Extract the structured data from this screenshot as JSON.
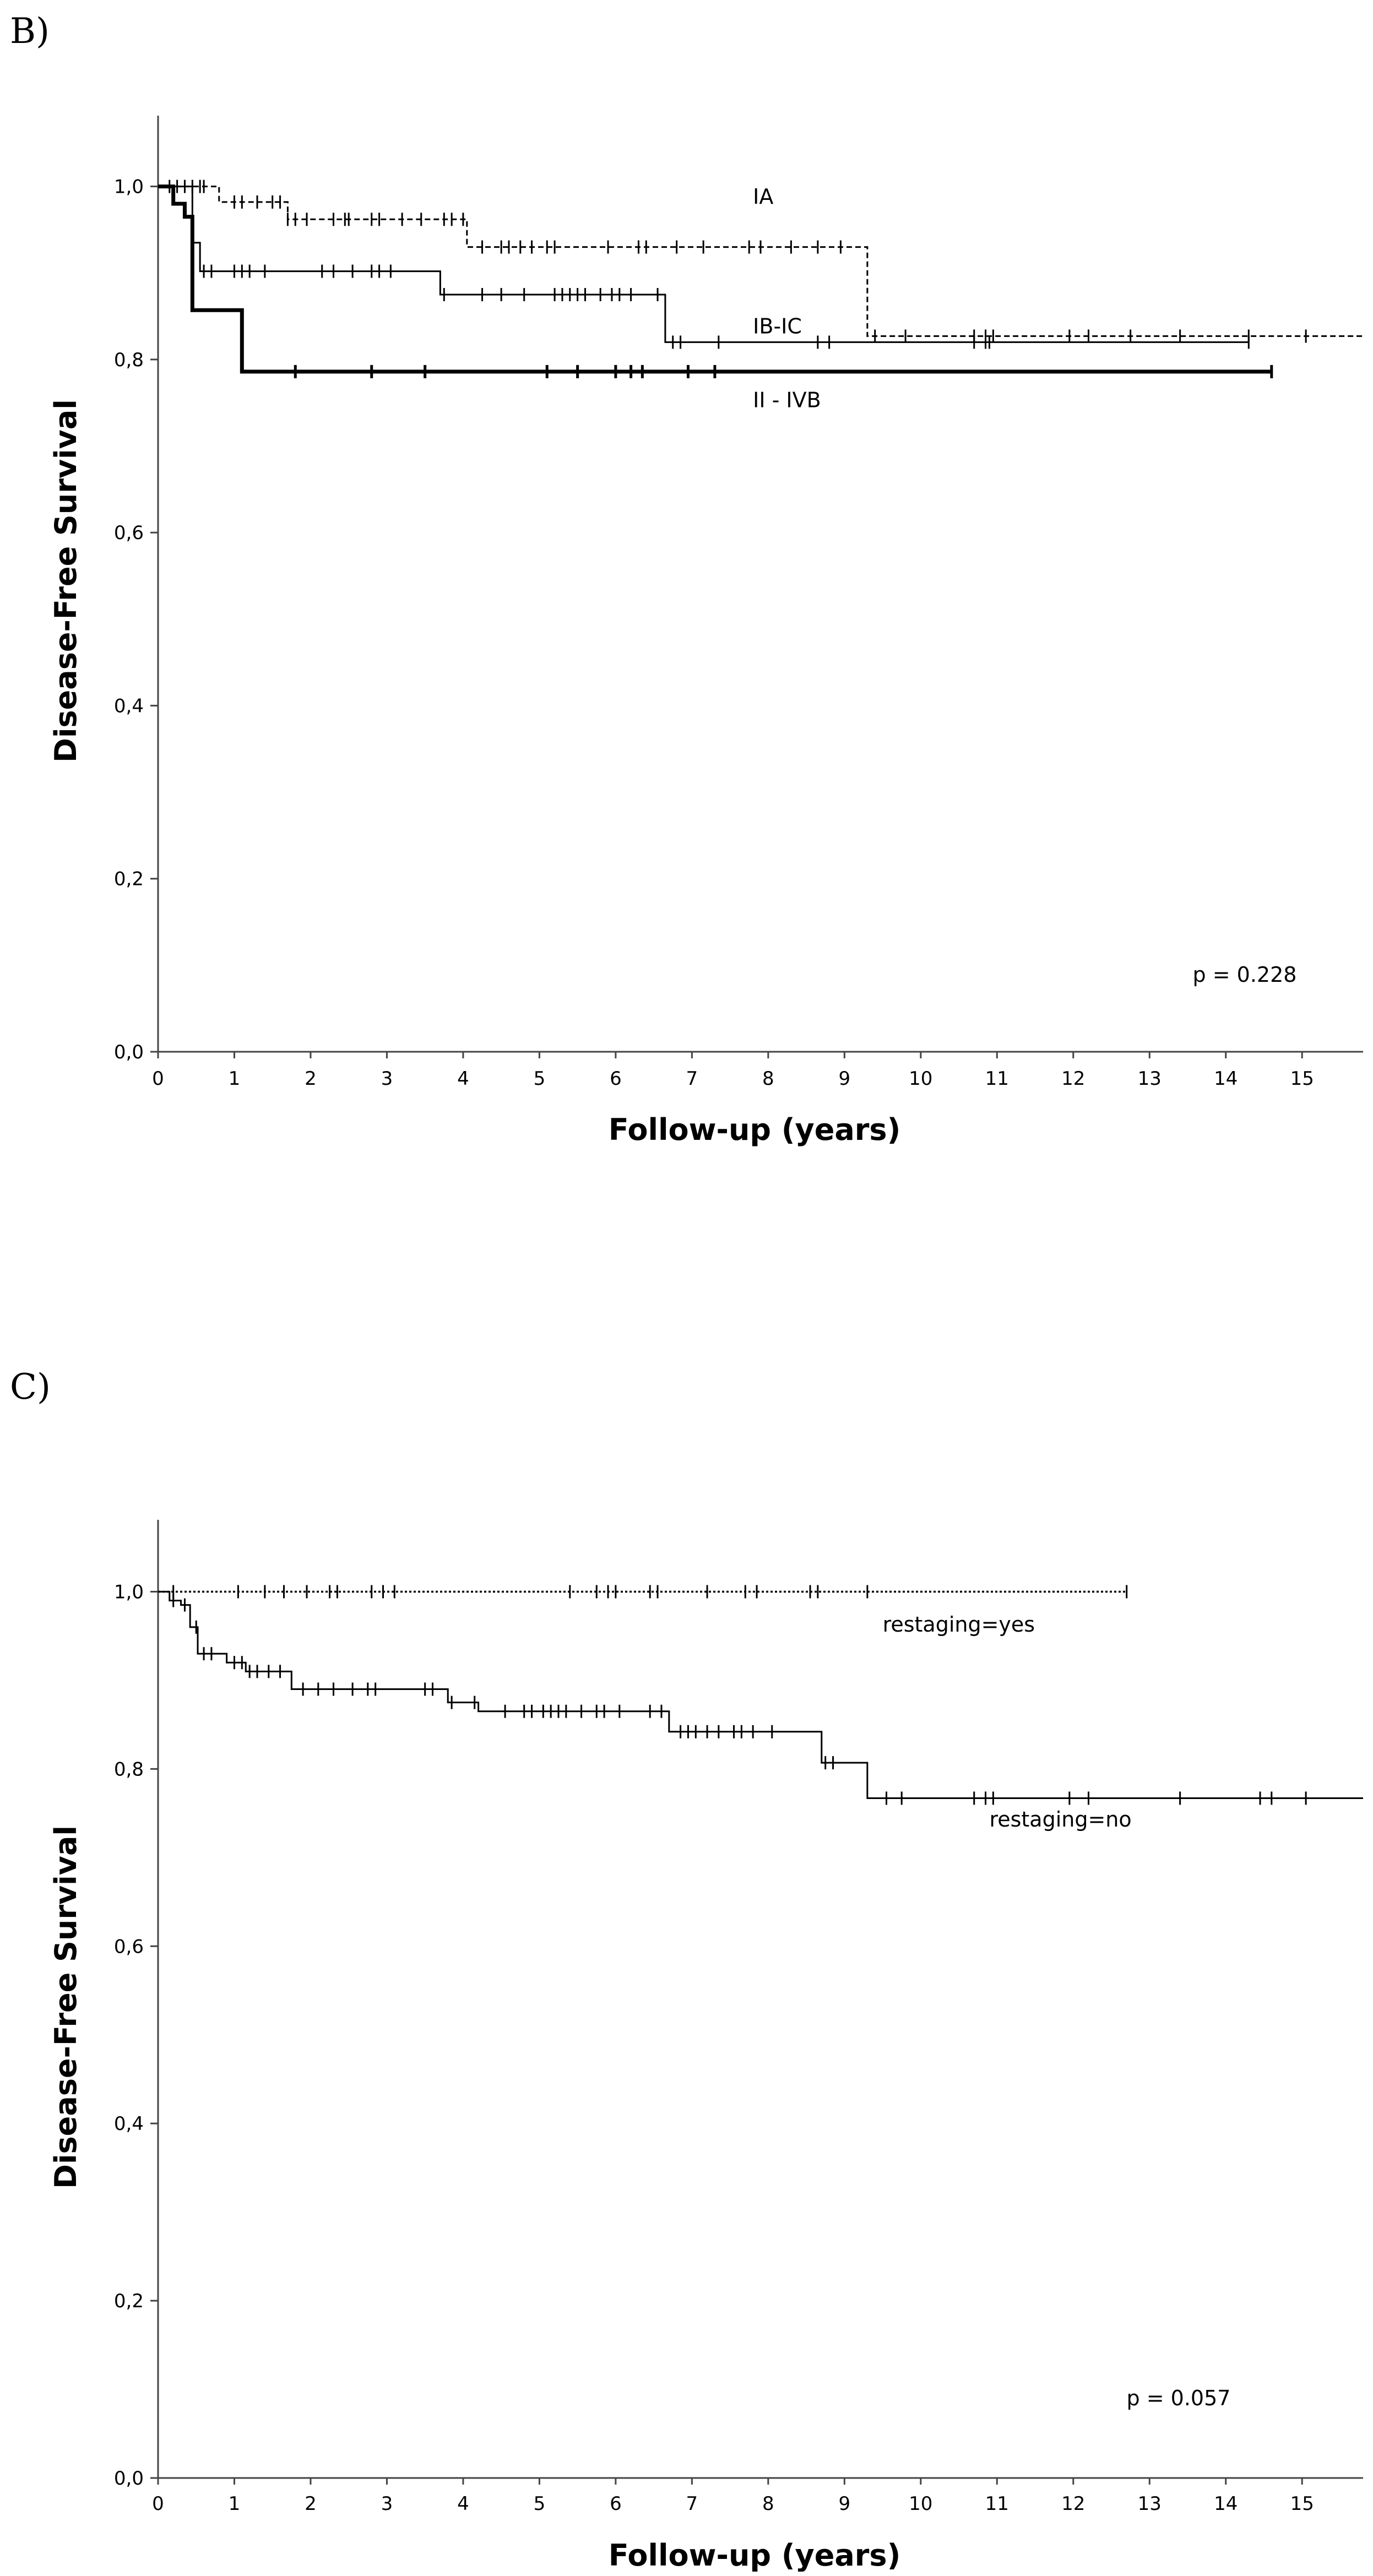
{
  "chart_data": [
    {
      "panel": "B)",
      "type": "line",
      "subtype": "kaplan-meier step",
      "title": "",
      "xlabel": "Follow-up (years)",
      "ylabel": "Disease-Free Survival",
      "xlim": [
        0,
        15.8
      ],
      "ylim": [
        0,
        1.05
      ],
      "xticks": [
        "0",
        "1",
        "2",
        "3",
        "4",
        "5",
        "6",
        "7",
        "8",
        "9",
        "10",
        "11",
        "12",
        "13",
        "14",
        "15"
      ],
      "yticks": [
        "0,0",
        "0,2",
        "0,4",
        "0,6",
        "0,8",
        "1,0"
      ],
      "annotation": "p = 0.228",
      "series": [
        {
          "name": "IA",
          "style": "dashed",
          "label_at": [
            7.8,
            0.98
          ],
          "steps": [
            [
              0,
              1.0
            ],
            [
              0.8,
              0.982
            ],
            [
              1.7,
              0.962
            ],
            [
              4.05,
              0.93
            ],
            [
              9.3,
              0.827
            ],
            [
              15.8,
              0.827
            ]
          ],
          "censors": [
            0.15,
            0.25,
            0.35,
            0.45,
            0.55,
            0.6,
            1.0,
            1.1,
            1.3,
            1.5,
            1.6,
            1.7,
            1.8,
            1.95,
            2.3,
            2.45,
            2.5,
            2.8,
            2.9,
            3.2,
            3.45,
            3.75,
            3.85,
            4.0,
            4.25,
            4.5,
            4.6,
            4.75,
            4.9,
            5.1,
            5.2,
            5.9,
            6.3,
            6.4,
            6.8,
            7.15,
            7.75,
            7.9,
            8.3,
            8.65,
            8.95,
            9.4,
            9.8,
            10.7,
            10.85,
            10.95,
            11.95,
            12.2,
            12.75,
            13.4,
            14.3,
            15.05
          ]
        },
        {
          "name": "IB-IC",
          "style": "solid",
          "label_at": [
            7.8,
            0.83
          ],
          "steps": [
            [
              0,
              1.0
            ],
            [
              0.45,
              0.935
            ],
            [
              0.55,
              0.902
            ],
            [
              3.7,
              0.875
            ],
            [
              6.65,
              0.82
            ],
            [
              14.3,
              0.82
            ]
          ],
          "censors": [
            0.6,
            0.7,
            1.0,
            1.1,
            1.2,
            1.4,
            2.15,
            2.3,
            2.55,
            2.8,
            2.9,
            3.05,
            3.75,
            4.25,
            4.5,
            4.8,
            5.2,
            5.3,
            5.4,
            5.5,
            5.6,
            5.8,
            5.95,
            6.05,
            6.2,
            6.55,
            6.75,
            6.85,
            7.35,
            8.65,
            8.8,
            10.7,
            10.85,
            10.9,
            14.3
          ]
        },
        {
          "name": "II - IVB",
          "style": "bold",
          "label_at": [
            7.8,
            0.745
          ],
          "steps": [
            [
              0,
              1.0
            ],
            [
              0.2,
              0.98
            ],
            [
              0.35,
              0.965
            ],
            [
              0.45,
              0.857
            ],
            [
              1.1,
              0.786
            ],
            [
              14.6,
              0.786
            ]
          ],
          "censors": [
            1.8,
            2.8,
            3.5,
            5.1,
            5.5,
            6.0,
            6.2,
            6.35,
            6.95,
            7.3,
            14.6
          ]
        }
      ]
    },
    {
      "panel": "C)",
      "type": "line",
      "subtype": "kaplan-meier step",
      "title": "",
      "xlabel": "Follow-up (years)",
      "ylabel": "Disease-Free Survival",
      "xlim": [
        0,
        15.8
      ],
      "ylim": [
        0,
        1.05
      ],
      "xticks": [
        "0",
        "1",
        "2",
        "3",
        "4",
        "5",
        "6",
        "7",
        "8",
        "9",
        "10",
        "11",
        "12",
        "13",
        "14",
        "15"
      ],
      "yticks": [
        "0,0",
        "0,2",
        "0,4",
        "0,6",
        "0,8",
        "1,0"
      ],
      "annotation": "p = 0.057",
      "series": [
        {
          "name": "restaging=yes",
          "style": "dotted",
          "label_at": [
            9.5,
            0.955
          ],
          "steps": [
            [
              0,
              1.0
            ],
            [
              12.7,
              1.0
            ]
          ],
          "censors": [
            0.2,
            1.05,
            1.4,
            1.65,
            1.95,
            2.25,
            2.35,
            2.8,
            2.95,
            3.1,
            5.4,
            5.75,
            5.9,
            6.0,
            6.45,
            6.55,
            7.2,
            7.7,
            7.85,
            8.55,
            8.65,
            9.3,
            12.7
          ]
        },
        {
          "name": "restaging=no",
          "style": "solid",
          "label_at": [
            10.9,
            0.735
          ],
          "steps": [
            [
              0,
              1.0
            ],
            [
              0.15,
              0.99
            ],
            [
              0.3,
              0.985
            ],
            [
              0.42,
              0.96
            ],
            [
              0.52,
              0.93
            ],
            [
              0.9,
              0.92
            ],
            [
              1.15,
              0.91
            ],
            [
              1.75,
              0.89
            ],
            [
              3.8,
              0.875
            ],
            [
              4.2,
              0.865
            ],
            [
              6.7,
              0.842
            ],
            [
              8.7,
              0.807
            ],
            [
              9.3,
              0.767
            ],
            [
              15.8,
              0.767
            ]
          ],
          "censors": [
            0.2,
            0.35,
            0.5,
            0.6,
            0.7,
            1.0,
            1.1,
            1.2,
            1.3,
            1.45,
            1.6,
            1.9,
            2.1,
            2.3,
            2.55,
            2.75,
            2.85,
            3.5,
            3.6,
            3.85,
            4.15,
            4.55,
            4.8,
            4.9,
            5.05,
            5.15,
            5.25,
            5.35,
            5.55,
            5.75,
            5.85,
            6.05,
            6.45,
            6.6,
            6.85,
            6.95,
            7.05,
            7.2,
            7.35,
            7.55,
            7.65,
            7.8,
            8.05,
            8.75,
            8.85,
            9.55,
            9.75,
            10.7,
            10.85,
            10.95,
            11.95,
            12.2,
            13.4,
            14.45,
            14.6,
            15.05
          ]
        }
      ]
    }
  ]
}
